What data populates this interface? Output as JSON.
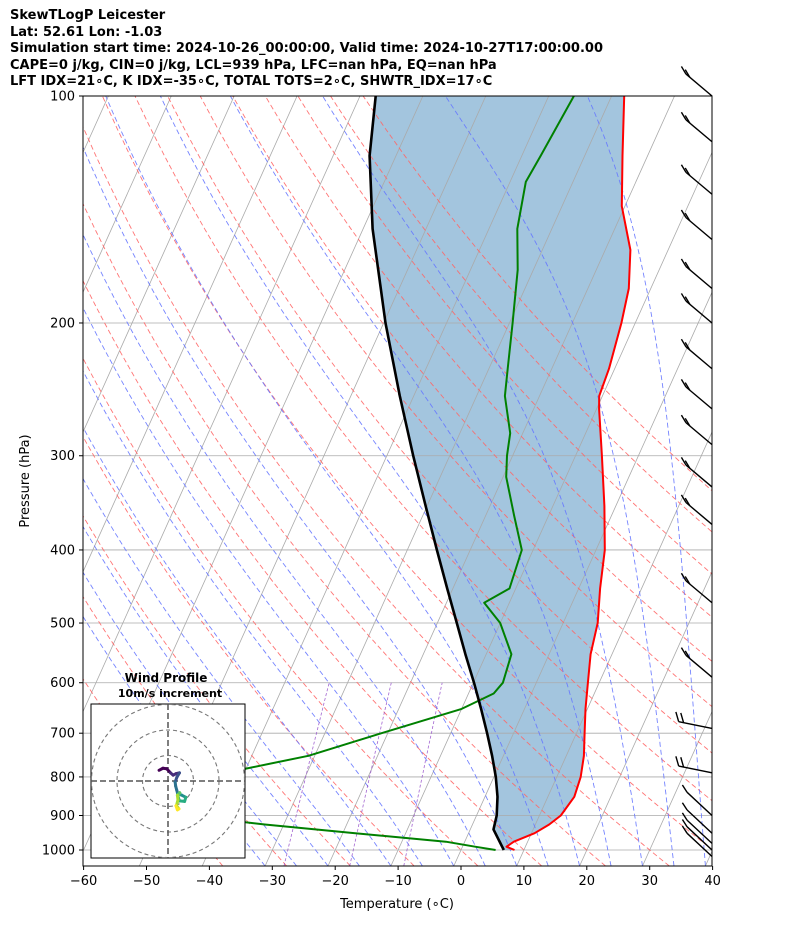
{
  "header": {
    "line1": "SkewTLogP Leicester",
    "line2": "Lat: 52.61   Lon: -1.03",
    "line3": "Simulation start time: 2024-10-26_00:00:00, Valid time: 2024-10-27T17:00:00.00",
    "line4": "CAPE=0 j/kg, CIN=0 j/kg, LCL=939 hPa, LFC=nan hPa, EQ=nan hPa",
    "line5": "LFT IDX=21∘C, K IDX=-35∘C, TOTAL TOTS=2∘C, SHWTR_IDX=17∘C"
  },
  "chart_data": {
    "type": "line",
    "xlabel": "Temperature (∘C)",
    "ylabel": "Pressure (hPa)",
    "xlim": [
      -60,
      40
    ],
    "ylim": [
      1050,
      100
    ],
    "y_scale": "log",
    "x_ticks": [
      -60,
      -50,
      -40,
      -30,
      -20,
      -10,
      0,
      10,
      20,
      30,
      40
    ],
    "x_tick_labels": [
      "−60",
      "−50",
      "−40",
      "−30",
      "−20",
      "−10",
      "0",
      "10",
      "20",
      "30",
      "40"
    ],
    "y_ticks": [
      100,
      200,
      300,
      400,
      500,
      600,
      700,
      800,
      900,
      1000
    ],
    "y_tick_labels": [
      "100",
      "200",
      "300",
      "400",
      "500",
      "600",
      "700",
      "800",
      "900",
      "1000"
    ],
    "grid": true,
    "colors": {
      "temperature": "#ff0000",
      "dewpoint": "#008000",
      "parcel": "#000000",
      "shade": "#a3c5de",
      "dry_adiabat": "#ff6666",
      "moist_adiabat": "#6677ff",
      "mixing_ratio": "#9955cc",
      "isotherm": "#aaaaaa"
    },
    "series": [
      {
        "key": "temperature",
        "points": [
          [
            1000,
            8.5
          ],
          [
            990,
            7.0
          ],
          [
            975,
            7.8
          ],
          [
            950,
            10.5
          ],
          [
            925,
            12.2
          ],
          [
            900,
            13.4
          ],
          [
            850,
            14.2
          ],
          [
            800,
            13.8
          ],
          [
            750,
            12.8
          ],
          [
            700,
            11.3
          ],
          [
            650,
            9.7
          ],
          [
            600,
            8.2
          ],
          [
            550,
            6.6
          ],
          [
            500,
            5.5
          ],
          [
            450,
            3.4
          ],
          [
            400,
            1.4
          ],
          [
            350,
            -1.8
          ],
          [
            300,
            -5.8
          ],
          [
            260,
            -9.6
          ],
          [
            250,
            -10.5
          ],
          [
            230,
            -10.9
          ],
          [
            200,
            -12.2
          ],
          [
            180,
            -13.5
          ],
          [
            160,
            -16.0
          ],
          [
            140,
            -20.5
          ],
          [
            120,
            -24.0
          ],
          [
            100,
            -28.0
          ]
        ]
      },
      {
        "key": "dewpoint",
        "points": [
          [
            1000,
            5.5
          ],
          [
            990,
            2.0
          ],
          [
            975,
            -3.0
          ],
          [
            950,
            -18.0
          ],
          [
            925,
            -33.0
          ],
          [
            900,
            -46.0
          ],
          [
            850,
            -53.0
          ],
          [
            800,
            -46.0
          ],
          [
            780,
            -40.0
          ],
          [
            750,
            -31.0
          ],
          [
            700,
            -21.0
          ],
          [
            650,
            -10.0
          ],
          [
            620,
            -6.0
          ],
          [
            600,
            -5.3
          ],
          [
            550,
            -6.0
          ],
          [
            500,
            -10.0
          ],
          [
            470,
            -14.0
          ],
          [
            450,
            -11.0
          ],
          [
            400,
            -11.8
          ],
          [
            360,
            -15.5
          ],
          [
            320,
            -19.5
          ],
          [
            300,
            -20.9
          ],
          [
            280,
            -22.0
          ],
          [
            250,
            -25.5
          ],
          [
            230,
            -27.0
          ],
          [
            200,
            -29.5
          ],
          [
            170,
            -32.5
          ],
          [
            150,
            -35.5
          ],
          [
            130,
            -37.5
          ],
          [
            120,
            -37.0
          ],
          [
            100,
            -36.0
          ]
        ]
      },
      {
        "key": "parcel",
        "points": [
          [
            1000,
            6.8
          ],
          [
            939,
            3.7
          ],
          [
            900,
            3.2
          ],
          [
            850,
            2.0
          ],
          [
            800,
            0.3
          ],
          [
            750,
            -1.8
          ],
          [
            700,
            -4.2
          ],
          [
            650,
            -6.9
          ],
          [
            600,
            -9.9
          ],
          [
            550,
            -13.3
          ],
          [
            500,
            -16.9
          ],
          [
            450,
            -20.9
          ],
          [
            400,
            -25.3
          ],
          [
            350,
            -30.2
          ],
          [
            300,
            -35.8
          ],
          [
            250,
            -42.2
          ],
          [
            200,
            -49.7
          ],
          [
            150,
            -58.5
          ],
          [
            120,
            -64.2
          ],
          [
            100,
            -67.5
          ]
        ]
      }
    ],
    "wind_barbs": {
      "pressures": [
        100,
        115,
        135,
        155,
        180,
        200,
        230,
        260,
        290,
        330,
        370,
        470,
        590,
        690,
        790,
        900,
        950,
        980,
        1000,
        1020
      ]
    },
    "hodograph": {
      "title": "Wind Profile",
      "subtitle": "10m/s increment",
      "points": [
        [
          -3.5,
          4.2
        ],
        [
          -2.0,
          5.0
        ],
        [
          -0.5,
          4.8
        ],
        [
          1.0,
          3.2
        ],
        [
          2.0,
          2.3
        ],
        [
          3.2,
          2.9
        ],
        [
          4.5,
          3.2
        ],
        [
          3.5,
          1.5
        ],
        [
          2.8,
          -0.4
        ],
        [
          3.0,
          -2.0
        ],
        [
          3.4,
          -3.5
        ],
        [
          3.8,
          -5.0
        ],
        [
          5.3,
          -5.5
        ],
        [
          7.0,
          -6.4
        ],
        [
          6.5,
          -8.0
        ],
        [
          4.5,
          -7.8
        ],
        [
          3.9,
          -6.0
        ],
        [
          4.6,
          -4.6
        ],
        [
          3.7,
          -5.6
        ],
        [
          3.9,
          -7.4
        ],
        [
          3.3,
          -9.7
        ],
        [
          4.3,
          -10.9
        ],
        [
          3.7,
          -11.3
        ],
        [
          3.1,
          -9.7
        ]
      ]
    }
  }
}
